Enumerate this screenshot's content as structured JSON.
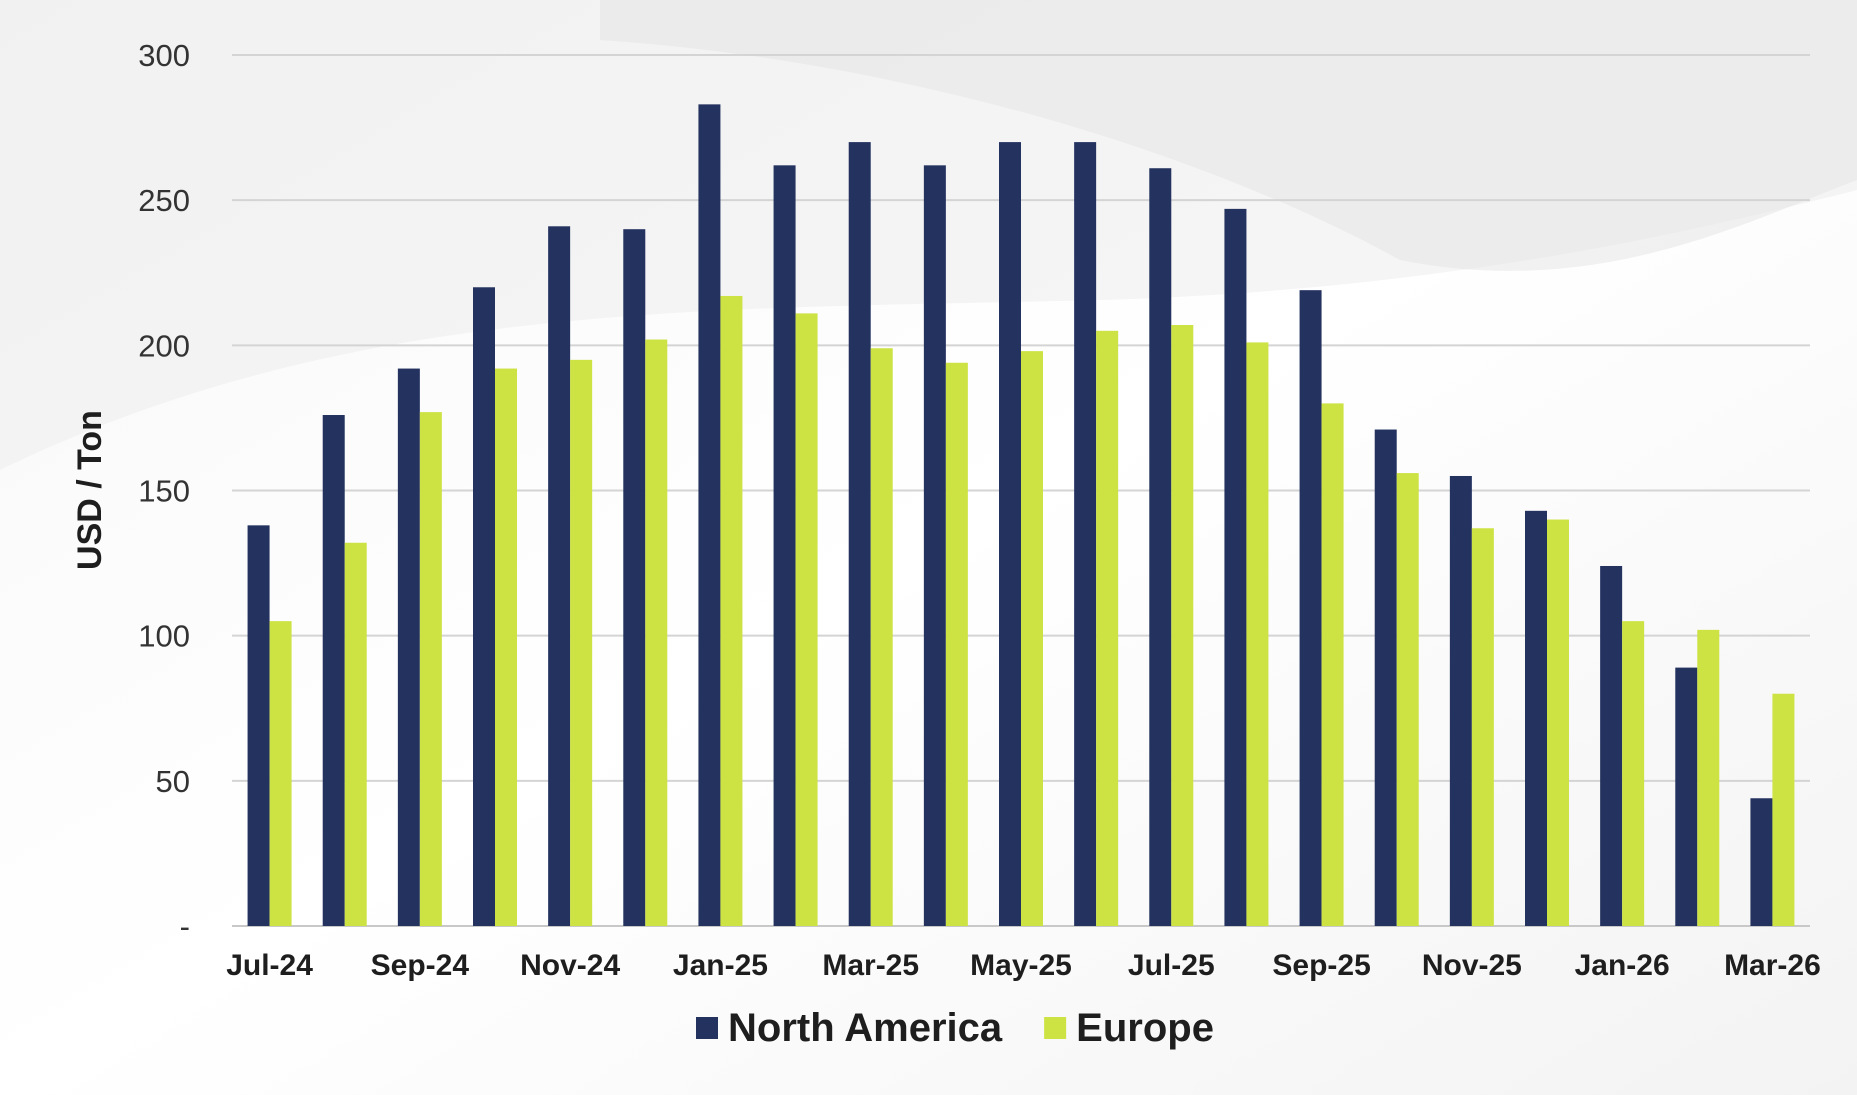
{
  "chart_data": {
    "type": "bar",
    "title": "",
    "xlabel": "",
    "ylabel": "USD / Ton",
    "ylim": [
      0,
      300
    ],
    "yticks": [
      0,
      50,
      100,
      150,
      200,
      250,
      300
    ],
    "ytick_labels": [
      "-",
      "50",
      "100",
      "150",
      "200",
      "250",
      "300"
    ],
    "grid": true,
    "legend_position": "bottom",
    "categories": [
      "Jul-24",
      "Aug-24",
      "Sep-24",
      "Oct-24",
      "Nov-24",
      "Dec-24",
      "Jan-25",
      "Feb-25",
      "Mar-25",
      "Apr-25",
      "May-25",
      "Jun-25",
      "Jul-25",
      "Aug-25",
      "Sep-25",
      "Oct-25",
      "Nov-25",
      "Dec-25",
      "Jan-26",
      "Feb-26",
      "Mar-26"
    ],
    "xtick_labels": [
      "Jul-24",
      "",
      "Sep-24",
      "",
      "Nov-24",
      "",
      "Jan-25",
      "",
      "Mar-25",
      "",
      "May-25",
      "",
      "Jul-25",
      "",
      "Sep-25",
      "",
      "Nov-25",
      "",
      "Jan-26",
      "",
      "Mar-26"
    ],
    "series": [
      {
        "name": "North America",
        "color": "#24325f",
        "values": [
          138,
          176,
          192,
          220,
          241,
          240,
          283,
          262,
          270,
          262,
          270,
          270,
          261,
          247,
          219,
          171,
          155,
          143,
          124,
          89,
          44
        ]
      },
      {
        "name": "Europe",
        "color": "#cde243",
        "values": [
          105,
          132,
          177,
          192,
          195,
          202,
          217,
          211,
          199,
          194,
          198,
          205,
          207,
          201,
          180,
          156,
          137,
          140,
          105,
          102,
          80
        ]
      }
    ]
  }
}
